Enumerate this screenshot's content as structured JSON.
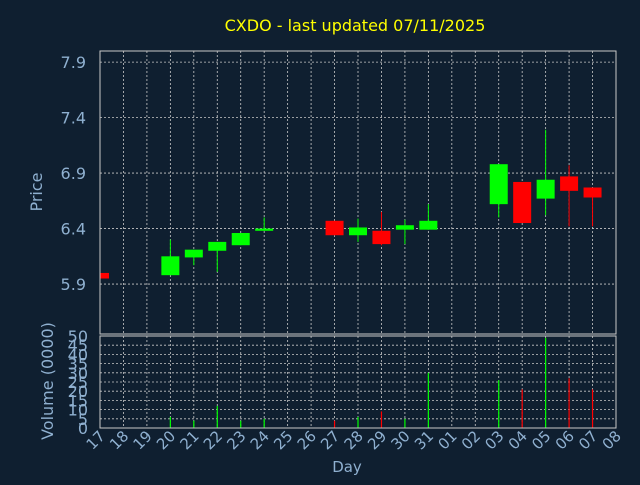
{
  "title": "CXDO - last updated 07/11/2025",
  "colors": {
    "background": "#0f1f30",
    "title": "#ffff00",
    "axis_text": "#8fb0d0",
    "frame": "#c8c8c8",
    "grid": "#c8c8c8",
    "up": "#00ff00",
    "down": "#ff0000"
  },
  "chart_data": [
    {
      "type": "candlestick",
      "ylabel": "Price",
      "ylim": [
        5.45,
        8.0
      ],
      "yticks": [
        "5.9",
        "6.4",
        "6.9",
        "7.4",
        "7.9"
      ],
      "categories": [
        "17",
        "18",
        "19",
        "20",
        "21",
        "22",
        "23",
        "24",
        "25",
        "26",
        "27",
        "28",
        "29",
        "30",
        "31",
        "01",
        "02",
        "03",
        "04",
        "05",
        "06",
        "07",
        "08"
      ],
      "candles": [
        {
          "day": "17",
          "open": 6.0,
          "close": 5.95,
          "high": 6.0,
          "low": 5.95
        },
        {
          "day": "20",
          "open": 5.98,
          "close": 6.15,
          "high": 6.3,
          "low": 5.98
        },
        {
          "day": "21",
          "open": 6.14,
          "close": 6.21,
          "high": 6.21,
          "low": 6.07
        },
        {
          "day": "22",
          "open": 6.2,
          "close": 6.28,
          "high": 6.28,
          "low": 6.01
        },
        {
          "day": "23",
          "open": 6.25,
          "close": 6.36,
          "high": 6.36,
          "low": 6.25
        },
        {
          "day": "24",
          "open": 6.38,
          "close": 6.4,
          "high": 6.5,
          "low": 6.38
        },
        {
          "day": "27",
          "open": 6.47,
          "close": 6.34,
          "high": 6.47,
          "low": 6.34
        },
        {
          "day": "28",
          "open": 6.34,
          "close": 6.41,
          "high": 6.49,
          "low": 6.28
        },
        {
          "day": "29",
          "open": 6.38,
          "close": 6.26,
          "high": 6.55,
          "low": 6.25
        },
        {
          "day": "30",
          "open": 6.39,
          "close": 6.43,
          "high": 6.48,
          "low": 6.26
        },
        {
          "day": "31",
          "open": 6.39,
          "close": 6.47,
          "high": 6.62,
          "low": 6.39
        },
        {
          "day": "03",
          "open": 6.62,
          "close": 6.98,
          "high": 6.98,
          "low": 6.5
        },
        {
          "day": "04",
          "open": 6.82,
          "close": 6.45,
          "high": 6.82,
          "low": 6.45
        },
        {
          "day": "05",
          "open": 6.67,
          "close": 6.84,
          "high": 7.29,
          "low": 6.52
        },
        {
          "day": "06",
          "open": 6.87,
          "close": 6.74,
          "high": 6.97,
          "low": 6.42
        },
        {
          "day": "07",
          "open": 6.77,
          "close": 6.68,
          "high": 6.77,
          "low": 6.42
        }
      ]
    },
    {
      "type": "bar",
      "ylabel": "Volume (0000)",
      "xlabel": "Day",
      "ylim": [
        0,
        50
      ],
      "yticks": [
        "0",
        "5",
        "10",
        "15",
        "20",
        "25",
        "30",
        "35",
        "40",
        "45",
        "50"
      ],
      "categories": [
        "17",
        "18",
        "19",
        "20",
        "21",
        "22",
        "23",
        "24",
        "25",
        "26",
        "27",
        "28",
        "29",
        "30",
        "31",
        "01",
        "02",
        "03",
        "04",
        "05",
        "06",
        "07",
        "08"
      ],
      "bars": [
        {
          "day": "17",
          "value": 0,
          "direction": "down"
        },
        {
          "day": "20",
          "value": 6,
          "direction": "up"
        },
        {
          "day": "21",
          "value": 4,
          "direction": "up"
        },
        {
          "day": "22",
          "value": 12,
          "direction": "up"
        },
        {
          "day": "23",
          "value": 4,
          "direction": "up"
        },
        {
          "day": "24",
          "value": 5,
          "direction": "up"
        },
        {
          "day": "27",
          "value": 4,
          "direction": "down"
        },
        {
          "day": "28",
          "value": 6,
          "direction": "up"
        },
        {
          "day": "29",
          "value": 9,
          "direction": "down"
        },
        {
          "day": "30",
          "value": 5,
          "direction": "up"
        },
        {
          "day": "31",
          "value": 30,
          "direction": "up"
        },
        {
          "day": "03",
          "value": 26,
          "direction": "up"
        },
        {
          "day": "04",
          "value": 21,
          "direction": "down"
        },
        {
          "day": "05",
          "value": 49,
          "direction": "up"
        },
        {
          "day": "06",
          "value": 27,
          "direction": "down"
        },
        {
          "day": "07",
          "value": 21,
          "direction": "down"
        }
      ]
    }
  ]
}
